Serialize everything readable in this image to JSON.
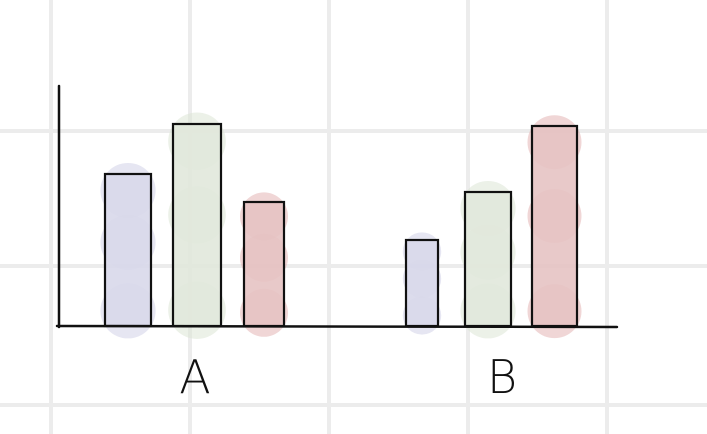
{
  "chart_data": {
    "type": "bar",
    "title": "",
    "xlabel": "",
    "ylabel": "",
    "categories": [
      "A",
      "B"
    ],
    "series": [
      {
        "values": [
          76,
          43
        ]
      },
      {
        "values": [
          101,
          67
        ]
      },
      {
        "values": [
          62,
          100
        ]
      }
    ],
    "ylim": [
      0,
      120
    ],
    "grid": true,
    "legend": "none"
  },
  "colors": {
    "grid": "#ececec",
    "axis": "#111111",
    "outline": "#111111",
    "series": [
      "#d8d8ea",
      "#e1e8dc",
      "#e5c3c3"
    ],
    "blob": [
      "#d2d2e8",
      "#dce6d6",
      "#e3b4b4"
    ]
  }
}
